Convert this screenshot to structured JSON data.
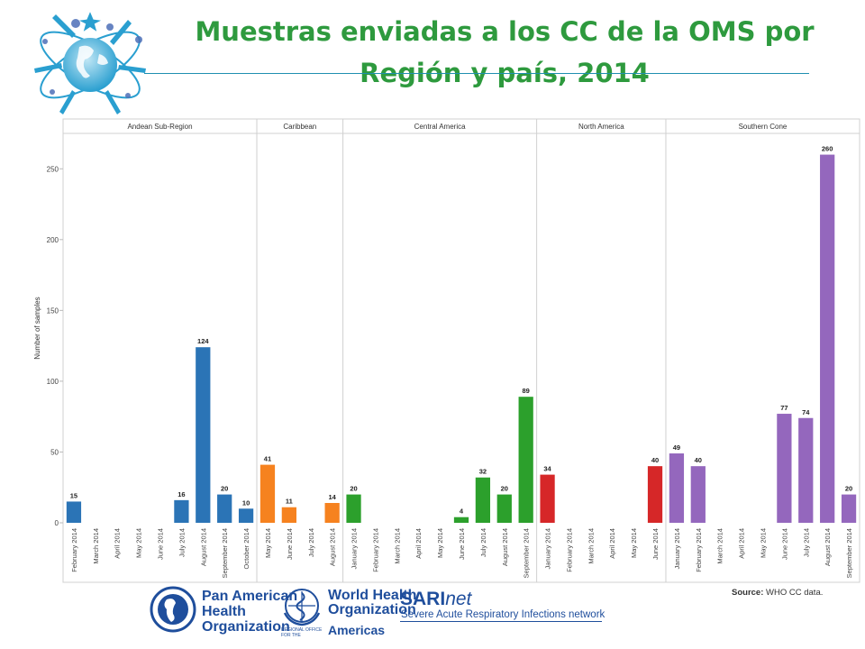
{
  "title": "Muestras enviadas a los CC de la OMS por Región y país, 2014",
  "source": {
    "label": "Source:",
    "text": "WHO CC data."
  },
  "logos": {
    "paho": "Pan American Health Organization",
    "who": "World Health Organization",
    "who_office": "REGIONAL OFFICE FOR THE",
    "who_region": "Americas",
    "sari_brand": "SARI",
    "sari_suffix": "net",
    "sari_tagline": "Severe Acute Respiratory Infections network"
  },
  "colors": {
    "title": "#2e9a3e",
    "Andean Sub-Region": "#2b74b6",
    "Caribbean": "#f6821f",
    "Central America": "#2ca02c",
    "North America": "#d62728",
    "Southern Cone": "#9467bd"
  },
  "chart_data": {
    "type": "bar",
    "title": "Muestras enviadas a los CC de la OMS por Región y país, 2014",
    "ylabel": "Number of samples",
    "xlabel": "",
    "ylim": [
      0,
      275
    ],
    "yticks": [
      0,
      50,
      100,
      150,
      200,
      250
    ],
    "grid": false,
    "panels": [
      {
        "name": "Andean Sub-Region",
        "categories": [
          "February 2014",
          "March 2014",
          "April 2014",
          "May 2014",
          "June 2014",
          "July 2014",
          "August 2014",
          "September 2014",
          "October 2014"
        ],
        "values": [
          15,
          null,
          null,
          null,
          null,
          16,
          124,
          20,
          10
        ]
      },
      {
        "name": "Caribbean",
        "categories": [
          "May 2014",
          "June 2014",
          "July 2014",
          "August 2014"
        ],
        "values": [
          41,
          11,
          null,
          14
        ]
      },
      {
        "name": "Central America",
        "categories": [
          "January 2014",
          "February 2014",
          "March 2014",
          "April 2014",
          "May 2014",
          "June 2014",
          "July 2014",
          "August 2014",
          "September 2014"
        ],
        "values": [
          20,
          null,
          null,
          null,
          null,
          4,
          32,
          20,
          89
        ]
      },
      {
        "name": "North America",
        "categories": [
          "January 2014",
          "February 2014",
          "March 2014",
          "April 2014",
          "May 2014",
          "June 2014"
        ],
        "values": [
          34,
          null,
          null,
          null,
          null,
          40
        ]
      },
      {
        "name": "Southern Cone",
        "categories": [
          "January 2014",
          "February 2014",
          "March 2014",
          "April 2014",
          "May 2014",
          "June 2014",
          "July 2014",
          "August 2014",
          "September 2014"
        ],
        "values": [
          49,
          40,
          null,
          null,
          null,
          77,
          74,
          260,
          20
        ]
      }
    ]
  }
}
